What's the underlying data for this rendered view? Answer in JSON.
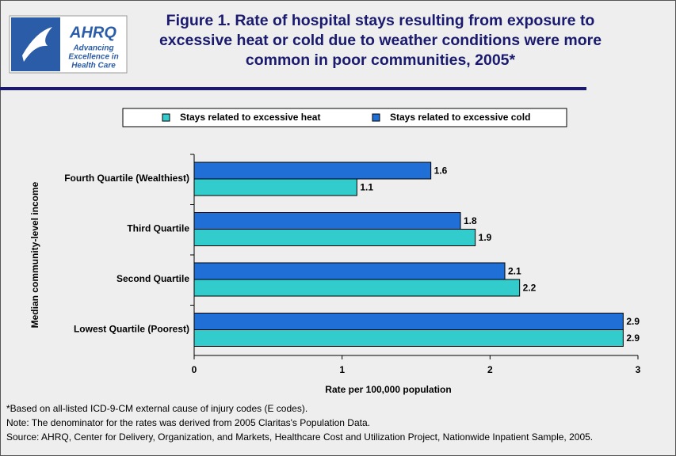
{
  "logo": {
    "brand": "AHRQ",
    "tagline": [
      "Advancing",
      "Excellence in",
      "Health Care"
    ]
  },
  "chart_data": {
    "type": "hbar",
    "title": "Figure 1. Rate of hospital stays resulting from exposure to excessive heat or cold due to weather conditions were more common in poor communities, 2005*",
    "categories": [
      "Fourth Quartile (Wealthiest)",
      "Third Quartile",
      "Second Quartile",
      "Lowest Quartile (Poorest)"
    ],
    "series": [
      {
        "name": "Stays related to excessive heat",
        "color": "#33cccc",
        "values": [
          1.1,
          1.9,
          2.2,
          2.9
        ]
      },
      {
        "name": "Stays related to excessive cold",
        "color": "#1f6fd6",
        "values": [
          1.6,
          1.8,
          2.1,
          2.9
        ]
      }
    ],
    "xlim": [
      0,
      3
    ],
    "xticks": [
      0,
      1,
      2,
      3
    ],
    "x_label": "Rate per 100,000 population",
    "y_label": "Median community-level income",
    "legend": "top",
    "footnotes": [
      "*Based on all-listed ICD-9-CM external cause of injury codes (E codes).",
      "Note: The denominator for the rates was derived from 2005 Claritas's Population Data.",
      "Source: AHRQ, Center for Delivery, Organization, and Markets, Healthcare Cost and Utilization Project, Nationwide Inpatient Sample, 2005."
    ]
  }
}
